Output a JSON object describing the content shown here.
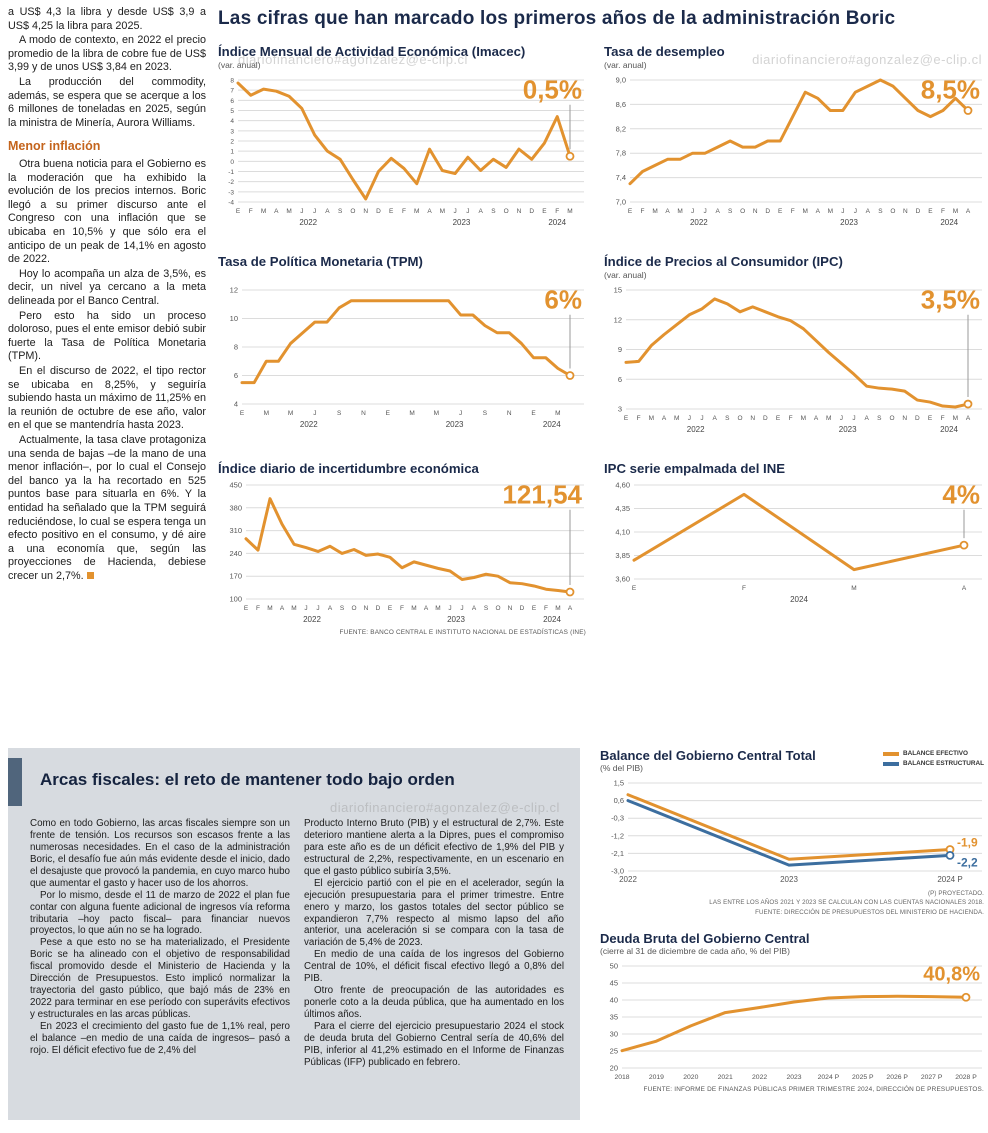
{
  "accent": {
    "orange": "#e2922f",
    "blue": "#3c6e9f",
    "navy": "#1b2a4a",
    "gray_box": "#d7dbe0"
  },
  "watermark": {
    "text": "diariofinanciero#agonzalez@e-clip.cl"
  },
  "left_column": {
    "paragraphs": [
      "a US$ 4,3 la libra y desde US$ 3,9 a US$ 4,25 la libra para 2025.",
      "A modo de contexto, en 2022 el precio promedio de la libra de cobre fue de US$ 3,99 y de unos US$ 3,84 en 2023.",
      "La producción del commodity, además, se espera que se acerque a los 6 millones de toneladas en 2025, según la ministra de Minería, Aurora Williams."
    ],
    "heading": "Menor inflación",
    "paragraphs2": [
      "Otra buena noticia para el Gobierno es la moderación que ha exhibido la evolución de los precios internos. Boric llegó a su primer discurso ante el Congreso con una inflación que se ubicaba en 10,5% y que sólo era el anticipo de un peak de 14,1% en agosto de 2022.",
      "Hoy lo acompaña un alza de 3,5%, es decir, un nivel ya cercano a la meta delineada por el Banco Central.",
      "Pero esto ha sido un proceso doloroso, pues el ente emisor debió subir fuerte la Tasa de Política Monetaria (TPM).",
      "En el discurso de 2022, el tipo rector se ubicaba en 8,25%, y seguiría subiendo hasta un máximo de 11,25% en la reunión de octubre de ese año, valor en el que se mantendría hasta 2023.",
      "Actualmente, la tasa clave protagoniza una senda de bajas –de la mano de una menor inflación–, por lo cual el Consejo del banco ya la ha recortado en 525 puntos base para situarla en 6%. Y la entidad ha señalado que la TPM seguirá reduciéndose, lo cual se espera tenga un efecto positivo en el consumo, y dé aire a una economía que, según las proyecciones de Hacienda, debiese crecer un 2,7%."
    ]
  },
  "main": {
    "title": "Las cifras que han marcado los primeros años de la administración Boric"
  },
  "bottom_box": {
    "title": "Arcas fiscales: el reto de mantener todo bajo orden",
    "col1": [
      "Como en todo Gobierno, las arcas fiscales siempre son un frente de tensión. Los recursos son escasos frente a las numerosas necesidades. En el caso de la administración Boric, el desafío fue aún más evidente desde el inicio, dado el desajuste que provocó la pandemia, en cuyo marco hubo que aumentar el gasto y hacer uso de los ahorros.",
      "Por lo mismo, desde el 11 de marzo de 2022 el plan fue contar con alguna fuente adicional de ingresos vía reforma tributaria –hoy pacto fiscal– para financiar nuevos proyectos, lo que aún no se ha logrado.",
      "Pese a que esto no se ha materializado, el Presidente Boric se ha alineado con el objetivo de responsabilidad fiscal promovido desde el Ministerio de Hacienda y la Dirección de Presupuestos. Esto implicó normalizar la trayectoria del gasto público, que bajó más de 23% en 2022 para terminar en ese período con superávits efectivos y estructurales en las arcas públicas.",
      "En 2023 el crecimiento del gasto fue de 1,1% real, pero el balance –en medio de una caída de ingresos– pasó a rojo. El déficit efectivo fue de 2,4% del"
    ],
    "col2": [
      "Producto Interno Bruto (PIB) y el estructural de 2,7%. Este deterioro mantiene alerta a la Dipres, pues el compromiso para este año es de un déficit efectivo de 1,9% del PIB y estructural de 2,2%, respectivamente, en un escenario en que el gasto público subiría 3,5%.",
      "El ejercicio partió con el pie en el acelerador, según la ejecución presupuestaria para el primer trimestre. Entre enero y marzo, los gastos totales del sector público se expandieron 7,7% respecto al mismo lapso del año anterior, una aceleración si se compara con la tasa de variación de 5,4% de 2023.",
      "En medio de una caída de los ingresos del Gobierno Central de 10%, el déficit fiscal efectivo llegó a 0,8% del PIB.",
      "Otro frente de preocupación de las autoridades es ponerle coto a la deuda pública, que ha aumentado en los últimos años.",
      "Para el cierre del ejercicio presupuestario 2024 el stock de deuda bruta del Gobierno Central sería de 40,6% del PIB, inferior al 41,2% estimado en el Informe de Finanzas Públicas (IFP) publicado en febrero."
    ]
  },
  "chart_data": [
    {
      "type": "line",
      "title": "Índice Mensual de Actividad Económica (Imacec)",
      "subtitle": "(var. anual)",
      "ylim": [
        -4,
        8
      ],
      "yticks": [
        "8",
        "7",
        "6",
        "5",
        "4",
        "3",
        "2",
        "1",
        "0",
        "-1",
        "-2",
        "-3",
        "-4"
      ],
      "ytick_size": 6.5,
      "pad_left": 20,
      "x_labels": [
        "E",
        "F",
        "M",
        "A",
        "M",
        "J",
        "J",
        "A",
        "S",
        "O",
        "N",
        "D",
        "E",
        "F",
        "M",
        "A",
        "M",
        "J",
        "J",
        "A",
        "S",
        "O",
        "N",
        "D",
        "E",
        "F",
        "M"
      ],
      "year_labels": [
        {
          "label": "2022",
          "index": 5.5
        },
        {
          "label": "2023",
          "index": 17.5
        },
        {
          "label": "2024",
          "index": 25
        }
      ],
      "series": [
        {
          "name": "Imacec",
          "color": "#e2922f",
          "values": [
            7.7,
            6.5,
            7.1,
            6.9,
            6.4,
            5.2,
            2.6,
            1.0,
            0.2,
            -1.8,
            -3.7,
            -1.0,
            0.3,
            -0.7,
            -2.2,
            1.2,
            -0.9,
            -1.2,
            0.4,
            -0.9,
            0.2,
            -0.6,
            1.2,
            0.2,
            1.8,
            4.4,
            0.5
          ],
          "end_marker": true
        }
      ],
      "callout": {
        "text": "0,5%",
        "color": "#e2922f",
        "size": 26,
        "line": true
      }
    },
    {
      "type": "line",
      "title": "Tasa de desempleo",
      "subtitle": "(var. anual)",
      "ylim": [
        7.0,
        9.0
      ],
      "yticks": [
        "9,0",
        "8,6",
        "8,2",
        "7,8",
        "7,4",
        "7,0"
      ],
      "ytick_size": 7.5,
      "pad_left": 26,
      "x_labels": [
        "E",
        "F",
        "M",
        "A",
        "M",
        "J",
        "J",
        "A",
        "S",
        "O",
        "N",
        "D",
        "E",
        "F",
        "M",
        "A",
        "M",
        "J",
        "J",
        "A",
        "S",
        "O",
        "N",
        "D",
        "E",
        "F",
        "M",
        "A"
      ],
      "year_labels": [
        {
          "label": "2022",
          "index": 5.5
        },
        {
          "label": "2023",
          "index": 17.5
        },
        {
          "label": "2024",
          "index": 25.5
        }
      ],
      "series": [
        {
          "name": "Desempleo",
          "color": "#e2922f",
          "values": [
            7.3,
            7.5,
            7.6,
            7.7,
            7.7,
            7.8,
            7.8,
            7.9,
            8.0,
            7.9,
            7.9,
            8.0,
            8.0,
            8.4,
            8.8,
            8.7,
            8.5,
            8.5,
            8.8,
            8.9,
            9.0,
            8.9,
            8.7,
            8.5,
            8.4,
            8.5,
            8.7,
            8.5
          ],
          "end_marker": true
        }
      ],
      "callout": {
        "text": "8,5%",
        "color": "#e2922f",
        "size": 26,
        "line": true
      }
    },
    {
      "type": "line",
      "title": "Tasa de Política Monetaria (TPM)",
      "subtitle": "",
      "ylim": [
        4,
        12
      ],
      "yticks": [
        "12",
        "10",
        "8",
        "6",
        "4"
      ],
      "ytick_size": 7.5,
      "pad_left": 24,
      "x_labels": [
        "E",
        "",
        "M",
        "",
        "M",
        "",
        "J",
        "",
        "S",
        "",
        "N",
        "",
        "E",
        "",
        "M",
        "",
        "M",
        "",
        "J",
        "",
        "S",
        "",
        "N",
        "",
        "E",
        "",
        "M",
        ""
      ],
      "year_labels": [
        {
          "label": "2022",
          "index": 5.5
        },
        {
          "label": "2023",
          "index": 17.5
        },
        {
          "label": "2024",
          "index": 25.5
        }
      ],
      "series": [
        {
          "name": "TPM",
          "color": "#e2922f",
          "values": [
            5.5,
            5.5,
            7.0,
            7.0,
            8.25,
            9.0,
            9.75,
            9.75,
            10.75,
            11.25,
            11.25,
            11.25,
            11.25,
            11.25,
            11.25,
            11.25,
            11.25,
            11.25,
            10.25,
            10.25,
            9.5,
            9.0,
            9.0,
            8.25,
            7.25,
            7.25,
            6.5,
            6.0
          ],
          "end_marker": true
        }
      ],
      "callout": {
        "text": "6%",
        "color": "#e2922f",
        "size": 26,
        "line": true
      }
    },
    {
      "type": "line",
      "title": "Índice de Precios al Consumidor (IPC)",
      "subtitle": "(var. anual)",
      "ylim": [
        3,
        15
      ],
      "yticks": [
        "15",
        "12",
        "9",
        "6",
        "3"
      ],
      "ytick_size": 7.5,
      "pad_left": 22,
      "x_labels": [
        "E",
        "F",
        "M",
        "A",
        "M",
        "J",
        "J",
        "A",
        "S",
        "O",
        "N",
        "D",
        "E",
        "F",
        "M",
        "A",
        "M",
        "J",
        "J",
        "A",
        "S",
        "O",
        "N",
        "D",
        "E",
        "F",
        "M",
        "A"
      ],
      "year_labels": [
        {
          "label": "2022",
          "index": 5.5
        },
        {
          "label": "2023",
          "index": 17.5
        },
        {
          "label": "2024",
          "index": 25.5
        }
      ],
      "series": [
        {
          "name": "IPC",
          "color": "#e2922f",
          "values": [
            7.7,
            7.8,
            9.4,
            10.5,
            11.5,
            12.5,
            13.1,
            14.1,
            13.6,
            12.8,
            13.3,
            12.8,
            12.3,
            11.9,
            11.1,
            9.9,
            8.7,
            7.6,
            6.5,
            5.3,
            5.1,
            5.0,
            4.8,
            3.9,
            3.7,
            3.3,
            3.2,
            3.5
          ],
          "end_marker": true
        }
      ],
      "callout": {
        "text": "3,5%",
        "color": "#e2922f",
        "size": 26,
        "line": true
      }
    },
    {
      "type": "line",
      "title": "Índice diario de incertidumbre económica",
      "subtitle": "",
      "ylim": [
        100,
        450
      ],
      "yticks": [
        "450",
        "380",
        "310",
        "240",
        "170",
        "100"
      ],
      "ytick_size": 7.5,
      "pad_left": 28,
      "x_labels": [
        "E",
        "F",
        "M",
        "A",
        "M",
        "J",
        "J",
        "A",
        "S",
        "O",
        "N",
        "D",
        "E",
        "F",
        "M",
        "A",
        "M",
        "J",
        "J",
        "A",
        "S",
        "O",
        "N",
        "D",
        "E",
        "F",
        "M",
        "A"
      ],
      "year_labels": [
        {
          "label": "2022",
          "index": 5.5
        },
        {
          "label": "2023",
          "index": 17.5
        },
        {
          "label": "2024",
          "index": 25.5
        }
      ],
      "series": [
        {
          "name": "Incertidumbre",
          "color": "#e2922f",
          "values": [
            285,
            250,
            408,
            330,
            268,
            258,
            246,
            262,
            240,
            252,
            234,
            238,
            228,
            196,
            214,
            204,
            194,
            186,
            160,
            166,
            176,
            170,
            150,
            147,
            140,
            130,
            126,
            121.54
          ],
          "end_marker": true
        }
      ],
      "callout": {
        "text": "121,54",
        "color": "#e2922f",
        "size": 26,
        "line": true
      },
      "source": "FUENTE: BANCO CENTRAL E INSTITUTO NACIONAL DE ESTADÍSTICAS (INE)"
    },
    {
      "type": "line",
      "title": "IPC serie empalmada del INE",
      "subtitle": "",
      "ylim": [
        3.6,
        4.6
      ],
      "yticks": [
        "4,60",
        "4,35",
        "4,10",
        "3,85",
        "3,60"
      ],
      "ytick_size": 7.5,
      "pad_left": 30,
      "pad_right": 20,
      "x_labels": [
        "E",
        "F",
        "M",
        "A"
      ],
      "year_labels": [
        {
          "label": "2024",
          "index": 1.5
        }
      ],
      "series": [
        {
          "name": "IPC INE",
          "color": "#e2922f",
          "values": [
            3.8,
            4.5,
            3.7,
            3.96
          ],
          "end_marker": true
        }
      ],
      "callout": {
        "text": "4%",
        "color": "#e2922f",
        "size": 26,
        "line": true
      }
    },
    {
      "type": "line",
      "title": "Balance del Gobierno Central Total",
      "subtitle": "(% del PIB)",
      "legend": [
        {
          "label": "BALANCE EFECTIVO",
          "color": "#e2922f"
        },
        {
          "label": "BALANCE ESTRUCTURAL",
          "color": "#3c6e9f"
        }
      ],
      "ylim": [
        -3.0,
        1.5
      ],
      "yticks": [
        "1,5",
        "0,6",
        "-0,3",
        "-1,2",
        "-2,1",
        "-3,0"
      ],
      "ytick_size": 7.5,
      "pad_left": 28,
      "pad_right": 34,
      "xtick_size": 8,
      "x_labels": [
        "2022",
        "2023",
        "2024 P"
      ],
      "series": [
        {
          "name": "Balance efectivo",
          "color": "#e2922f",
          "values": [
            0.9,
            -2.4,
            -1.9
          ],
          "end_marker": true,
          "end_label": "-1,9",
          "label_dy": -3
        },
        {
          "name": "Balance estructural",
          "color": "#3c6e9f",
          "values": [
            0.6,
            -2.7,
            -2.2
          ],
          "end_marker": true,
          "end_label": "-2,2",
          "label_dy": 11
        }
      ],
      "notes": [
        "(P) PROYECTADO.",
        "LAS ENTRE LOS AÑOS 2021 Y 2023 SE CALCULAN  CON LAS CUENTAS NACIONALES 2018.",
        "FUENTE: DIRECCIÓN DE PRESUPUESTOS DEL MINISTERIO DE HACIENDA."
      ]
    },
    {
      "type": "line",
      "title": "Deuda Bruta del Gobierno Central",
      "subtitle": "(cierre al 31 de diciembre de cada año, % del PIB)",
      "ylim": [
        20,
        50
      ],
      "yticks": [
        "50",
        "45",
        "40",
        "35",
        "30",
        "25",
        "20"
      ],
      "ytick_size": 7.5,
      "pad_left": 22,
      "pad_right": 18,
      "xtick_size": 6.8,
      "x_labels": [
        "2018",
        "2019",
        "2020",
        "2021",
        "2022",
        "2023",
        "2024 P",
        "2025 P",
        "2026 P",
        "2027 P",
        "2028 P"
      ],
      "series": [
        {
          "name": "Deuda bruta",
          "color": "#e2922f",
          "values": [
            25.1,
            27.9,
            32.4,
            36.3,
            37.8,
            39.4,
            40.6,
            41.0,
            41.1,
            41.0,
            40.8
          ],
          "end_marker": true
        }
      ],
      "callout": {
        "text": "40,8%",
        "color": "#e2922f",
        "size": 20,
        "line": false
      },
      "source": "FUENTE: INFORME DE FINANZAS PÚBLICAS PRIMER TRIMESTRE 2024, DIRECCIÓN DE PRESUPUESTOS."
    }
  ]
}
